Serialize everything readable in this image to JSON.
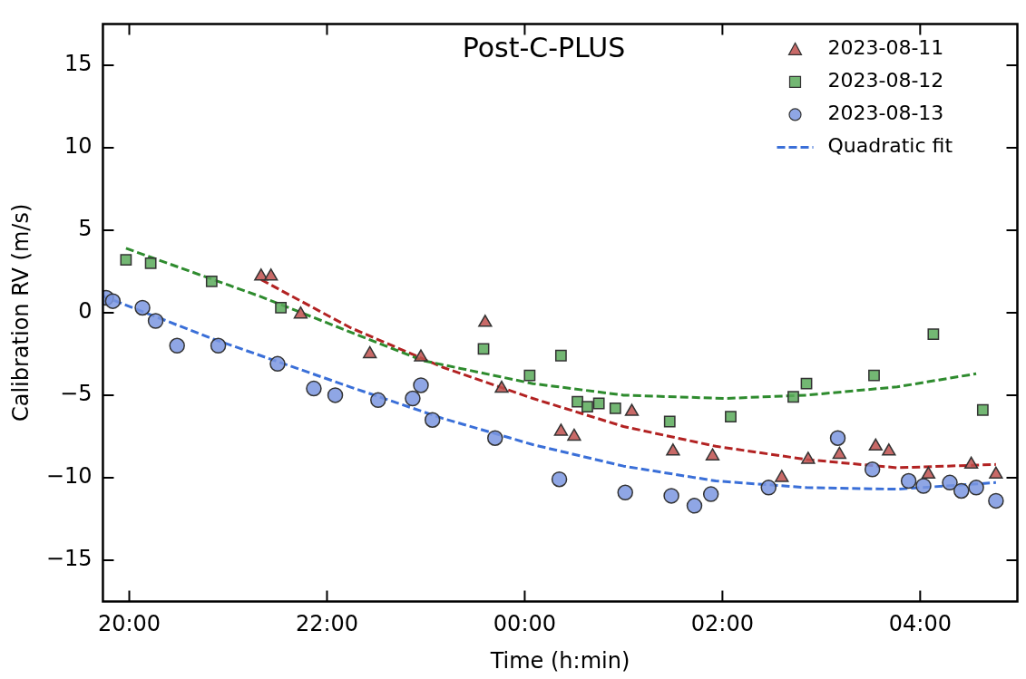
{
  "chart_data": {
    "type": "scatter",
    "title": "Post-C-PLUS",
    "xlabel": "Time (h:min)",
    "ylabel": "Calibration RV (m/s)",
    "xlim": [
      "2023-08-11T19:44",
      "2023-08-12T04:59"
    ],
    "xticks": [
      {
        "value": "2023-08-11T20:00",
        "label": "20:00"
      },
      {
        "value": "2023-08-11T22:00",
        "label": "22:00"
      },
      {
        "value": "2023-08-12T00:00",
        "label": "00:00"
      },
      {
        "value": "2023-08-12T02:00",
        "label": "02:00"
      },
      {
        "value": "2023-08-12T04:00",
        "label": "04:00"
      }
    ],
    "ylim": [
      -17.5,
      17.5
    ],
    "yticks": [
      {
        "value": -15,
        "label": "−15"
      },
      {
        "value": -10,
        "label": "−10"
      },
      {
        "value": -5,
        "label": "−5"
      },
      {
        "value": 0,
        "label": "0"
      },
      {
        "value": 5,
        "label": "5"
      },
      {
        "value": 10,
        "label": "10"
      },
      {
        "value": 15,
        "label": "15"
      }
    ],
    "grid": false,
    "legend": "top right",
    "series": [
      {
        "name": "2023-08-11",
        "marker": "triangle",
        "color": "#c0504d",
        "x": [
          "2023-08-11T21:20",
          "2023-08-11T21:26",
          "2023-08-11T21:44",
          "2023-08-11T22:26",
          "2023-08-11T22:57",
          "2023-08-11T23:36",
          "2023-08-11T23:46",
          "2023-08-12T00:22",
          "2023-08-12T00:30",
          "2023-08-12T01:05",
          "2023-08-12T01:30",
          "2023-08-12T01:54",
          "2023-08-12T02:36",
          "2023-08-12T02:52",
          "2023-08-12T03:11",
          "2023-08-12T03:33",
          "2023-08-12T03:41",
          "2023-08-12T04:05",
          "2023-08-12T04:31",
          "2023-08-12T04:46"
        ],
        "values": [
          2.2,
          2.2,
          -0.1,
          -2.5,
          -2.7,
          -0.6,
          -4.6,
          -7.2,
          -7.5,
          -6.0,
          -8.4,
          -8.7,
          -10.0,
          -8.9,
          -8.6,
          -8.1,
          -8.4,
          -9.8,
          -9.2,
          -9.8
        ]
      },
      {
        "name": "2023-08-12",
        "marker": "square",
        "color": "#5aaa5a",
        "x": [
          "2023-08-11T19:58",
          "2023-08-11T20:13",
          "2023-08-11T20:50",
          "2023-08-11T21:32",
          "2023-08-11T23:35",
          "2023-08-12T00:03",
          "2023-08-12T00:22",
          "2023-08-12T00:32",
          "2023-08-12T00:38",
          "2023-08-12T00:45",
          "2023-08-12T00:55",
          "2023-08-12T01:28",
          "2023-08-12T02:05",
          "2023-08-12T02:43",
          "2023-08-12T02:51",
          "2023-08-12T03:32",
          "2023-08-12T04:08",
          "2023-08-12T04:38"
        ],
        "values": [
          3.2,
          3.0,
          1.9,
          0.3,
          -2.2,
          -3.8,
          -2.6,
          -5.4,
          -5.7,
          -5.5,
          -5.8,
          -6.6,
          -6.3,
          -5.1,
          -4.3,
          -3.8,
          -1.3,
          -5.9
        ]
      },
      {
        "name": "2023-08-13",
        "marker": "circle",
        "color": "#7b96e0",
        "x": [
          "2023-08-11T19:46",
          "2023-08-11T19:50",
          "2023-08-11T20:08",
          "2023-08-11T20:16",
          "2023-08-11T20:29",
          "2023-08-11T20:54",
          "2023-08-11T21:30",
          "2023-08-11T21:52",
          "2023-08-11T22:05",
          "2023-08-11T22:31",
          "2023-08-11T22:52",
          "2023-08-11T22:57",
          "2023-08-11T23:04",
          "2023-08-11T23:42",
          "2023-08-12T00:21",
          "2023-08-12T01:01",
          "2023-08-12T01:29",
          "2023-08-12T01:43",
          "2023-08-12T01:53",
          "2023-08-12T02:28",
          "2023-08-12T03:10",
          "2023-08-12T03:31",
          "2023-08-12T03:53",
          "2023-08-12T04:02",
          "2023-08-12T04:18",
          "2023-08-12T04:25",
          "2023-08-12T04:34",
          "2023-08-12T04:46"
        ],
        "values": [
          0.9,
          0.7,
          0.3,
          -0.5,
          -2.0,
          -2.0,
          -3.1,
          -4.6,
          -5.0,
          -5.3,
          -5.2,
          -4.4,
          -6.5,
          -7.6,
          -10.1,
          -10.9,
          -11.1,
          -11.7,
          -11.0,
          -10.6,
          -7.6,
          -9.5,
          -10.2,
          -10.5,
          -10.3,
          -10.8,
          -10.6,
          -11.4
        ]
      },
      {
        "name": "Quadratic fit",
        "type": "line",
        "marker": "none",
        "line_style": "dashed",
        "color": "#3a6fd8",
        "x": [
          "2023-08-11T19:44",
          "2023-08-11T20:51",
          "2023-08-11T22:14",
          "2023-08-11T23:10",
          "2023-08-12T00:05",
          "2023-08-12T01:00",
          "2023-08-12T01:56",
          "2023-08-12T02:51",
          "2023-08-12T03:46",
          "2023-08-12T04:46"
        ],
        "values": [
          1.0,
          -1.6,
          -4.5,
          -6.4,
          -8.0,
          -9.3,
          -10.2,
          -10.6,
          -10.7,
          -10.3
        ]
      },
      {
        "type": "line",
        "marker": "none",
        "line_style": "dashed",
        "color": "#2e8b2e",
        "x": [
          "2023-08-11T19:58",
          "2023-08-11T21:19",
          "2023-08-11T22:58",
          "2023-08-12T00:05",
          "2023-08-12T01:00",
          "2023-08-12T02:01",
          "2023-08-12T02:51",
          "2023-08-12T03:46",
          "2023-08-12T04:34"
        ],
        "values": [
          3.9,
          1.0,
          -2.9,
          -4.3,
          -5.0,
          -5.2,
          -5.0,
          -4.5,
          -3.7
        ]
      },
      {
        "type": "line",
        "marker": "none",
        "line_style": "dashed",
        "color": "#b22222",
        "x": [
          "2023-08-11T21:20",
          "2023-08-11T22:14",
          "2023-08-11T23:10",
          "2023-08-12T00:05",
          "2023-08-12T01:00",
          "2023-08-12T01:56",
          "2023-08-12T02:51",
          "2023-08-12T03:46",
          "2023-08-12T04:46"
        ],
        "values": [
          2.0,
          -0.9,
          -3.3,
          -5.2,
          -6.9,
          -8.1,
          -8.9,
          -9.4,
          -9.2
        ]
      }
    ]
  }
}
